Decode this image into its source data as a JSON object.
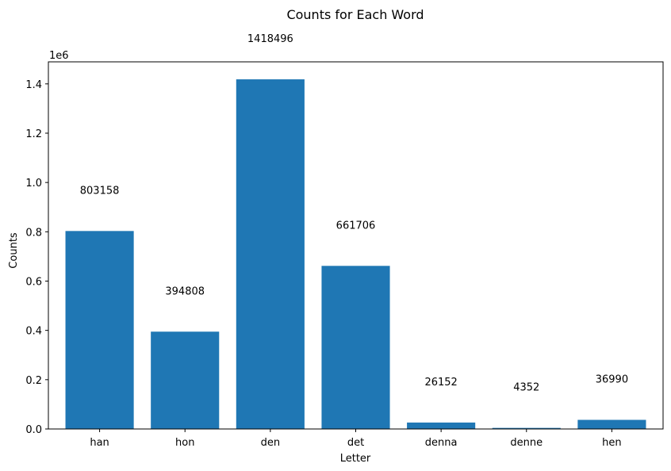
{
  "chart_data": {
    "type": "bar",
    "title": "Counts for Each Word",
    "xlabel": "Letter",
    "ylabel": "Counts",
    "offset_text": "1e6",
    "categories": [
      "han",
      "hon",
      "den",
      "det",
      "denna",
      "denne",
      "hen"
    ],
    "values": [
      803158,
      394808,
      1418496,
      661706,
      26152,
      4352,
      36990
    ],
    "data_labels": [
      "803158",
      "394808",
      "1418496",
      "661706",
      "26152",
      "4352",
      "36990"
    ],
    "ylim": [
      0,
      1489420
    ],
    "yticks": [
      0,
      200000,
      400000,
      600000,
      800000,
      1000000,
      1200000,
      1400000
    ],
    "ytick_labels": [
      "0.0",
      "0.2",
      "0.4",
      "0.6",
      "0.8",
      "1.0",
      "1.2",
      "1.4"
    ],
    "grid": false,
    "bar_color": "#1f77b4"
  }
}
